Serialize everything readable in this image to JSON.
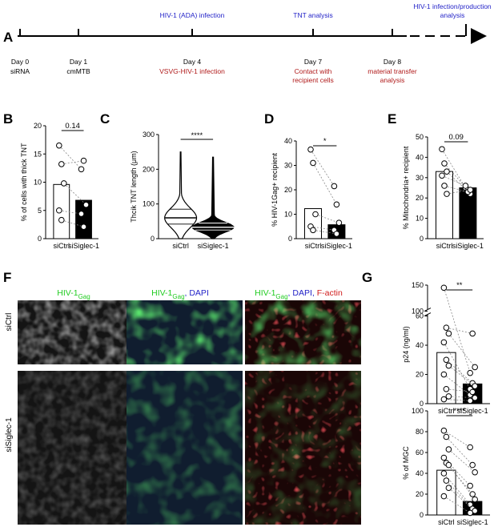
{
  "panel_letters": {
    "A": "A",
    "B": "B",
    "C": "C",
    "D": "D",
    "E": "E",
    "F": "F",
    "G": "G"
  },
  "timeline": {
    "events": [
      {
        "day": "Day  0",
        "sub": "siRNA"
      },
      {
        "day": "Day  1",
        "sub": "cmMTB"
      },
      {
        "day": "Day  4",
        "below": "VSVG-HIV-1 infection",
        "above": "HIV-1 (ADA) infection"
      },
      {
        "day": "Day  7",
        "below": "Contact with",
        "below2": "recipient cells",
        "above": "TNT analysis"
      },
      {
        "day": "Day  8",
        "below": "material transfer",
        "below2": "analysis"
      }
    ],
    "future_label_1": "HIV-1 infection/production",
    "future_label_2": "analysis",
    "colors": {
      "blue": "#2323c8",
      "red": "#b01a1a"
    }
  },
  "panel_f": {
    "col_titles": {
      "c1": {
        "main": "HIV-1",
        "sub": "Gag"
      },
      "c2": {
        "main": "HIV-1",
        "sub": "Gag",
        "rest": ", DAPI"
      },
      "c3": {
        "main": "HIV-1",
        "sub": "Gag",
        "mid": ", DAPI, ",
        "end": "F-actin"
      }
    },
    "row_labels": [
      "siCtrl",
      "siSiglec-1"
    ],
    "colors": {
      "green": "#22cc22",
      "blue": "#2323c8",
      "red": "#d01c1c"
    }
  },
  "chart_data": [
    {
      "id": "B",
      "type": "bar",
      "categories": [
        "siCtrl",
        "siSiglec-1"
      ],
      "values": [
        9.6,
        6.8
      ],
      "paired_points": [
        [
          16.5,
          12.3
        ],
        [
          13.2,
          13.8
        ],
        [
          9.8,
          6.0
        ],
        [
          5.0,
          4.4
        ],
        [
          3.3,
          2.1
        ]
      ],
      "ylabel": "% of cells with thick TNT",
      "yticks": [
        "0",
        "5",
        "10",
        "15",
        "20"
      ],
      "ylim": [
        0,
        20
      ],
      "significance": "0.14",
      "bar_colors": [
        "#ffffff",
        "#000000"
      ]
    },
    {
      "id": "C",
      "type": "violin",
      "categories": [
        "siCtrl",
        "siSiglec-1"
      ],
      "medians": [
        60,
        33
      ],
      "quartiles": [
        [
          42,
          85
        ],
        [
          25,
          45
        ]
      ],
      "max": [
        250,
        235
      ],
      "ylabel": "Thcik TNT length (μm)",
      "yticks": [
        "0",
        "100",
        "200",
        "300"
      ],
      "ylim": [
        0,
        300
      ],
      "significance": "****"
    },
    {
      "id": "D",
      "type": "bar",
      "categories": [
        "siCtrl",
        "siSiglec-1"
      ],
      "values": [
        12.3,
        5.7
      ],
      "paired_points": [
        [
          36.5,
          21.5
        ],
        [
          31,
          14
        ],
        [
          10,
          6.5
        ],
        [
          5,
          3.5
        ],
        [
          3.5,
          2
        ]
      ],
      "ylabel": "% HIV-1Gag+ recipient",
      "yticks": [
        "0",
        "10",
        "20",
        "30",
        "40"
      ],
      "ylim": [
        0,
        40
      ],
      "significance": "*",
      "bar_colors": [
        "#ffffff",
        "#000000"
      ]
    },
    {
      "id": "E",
      "type": "bar",
      "categories": [
        "siCtrl",
        "siSiglec-1"
      ],
      "values": [
        33,
        25
      ],
      "paired_points": [
        [
          44,
          25
        ],
        [
          37,
          24
        ],
        [
          33,
          22
        ],
        [
          31,
          26
        ],
        [
          26,
          23
        ],
        [
          22,
          24
        ]
      ],
      "ylabel": "% Mitochondria+ recipient",
      "yticks": [
        "0",
        "10",
        "20",
        "30",
        "40",
        "50"
      ],
      "ylim": [
        0,
        50
      ],
      "significance": "0.09",
      "bar_colors": [
        "#ffffff",
        "#000000"
      ]
    },
    {
      "id": "G-top",
      "type": "bar",
      "categories": [
        "siCtrl",
        "siSiglec-1"
      ],
      "values": [
        35,
        13.5
      ],
      "paired_points": [
        [
          145,
          21
        ],
        [
          52,
          48
        ],
        [
          48,
          25
        ],
        [
          42,
          10
        ],
        [
          30,
          14
        ],
        [
          26,
          12
        ],
        [
          20,
          6
        ],
        [
          10,
          8
        ],
        [
          5,
          4
        ],
        [
          3,
          2
        ]
      ],
      "ylabel": "p24  (ng/ml)",
      "yticks": [
        "0",
        "20",
        "40",
        "60",
        "100",
        "150"
      ],
      "ylim": [
        0,
        150
      ],
      "axis_break": [
        60,
        100
      ],
      "significance": "**",
      "bar_colors": [
        "#ffffff",
        "#000000"
      ]
    },
    {
      "id": "G-bottom",
      "type": "bar",
      "categories": [
        "siCtrl",
        "siSiglec-1"
      ],
      "values": [
        43,
        13
      ],
      "paired_points": [
        [
          81,
          65
        ],
        [
          75,
          48
        ],
        [
          63,
          41
        ],
        [
          55,
          28
        ],
        [
          50,
          20
        ],
        [
          48,
          15
        ],
        [
          40,
          10
        ],
        [
          33,
          6
        ],
        [
          26,
          4
        ],
        [
          18,
          2
        ]
      ],
      "ylabel": "% of MGC",
      "yticks": [
        "0",
        "20",
        "40",
        "60",
        "80",
        "100"
      ],
      "ylim": [
        0,
        100
      ],
      "significance": "****",
      "bar_colors": [
        "#ffffff",
        "#000000"
      ]
    }
  ]
}
